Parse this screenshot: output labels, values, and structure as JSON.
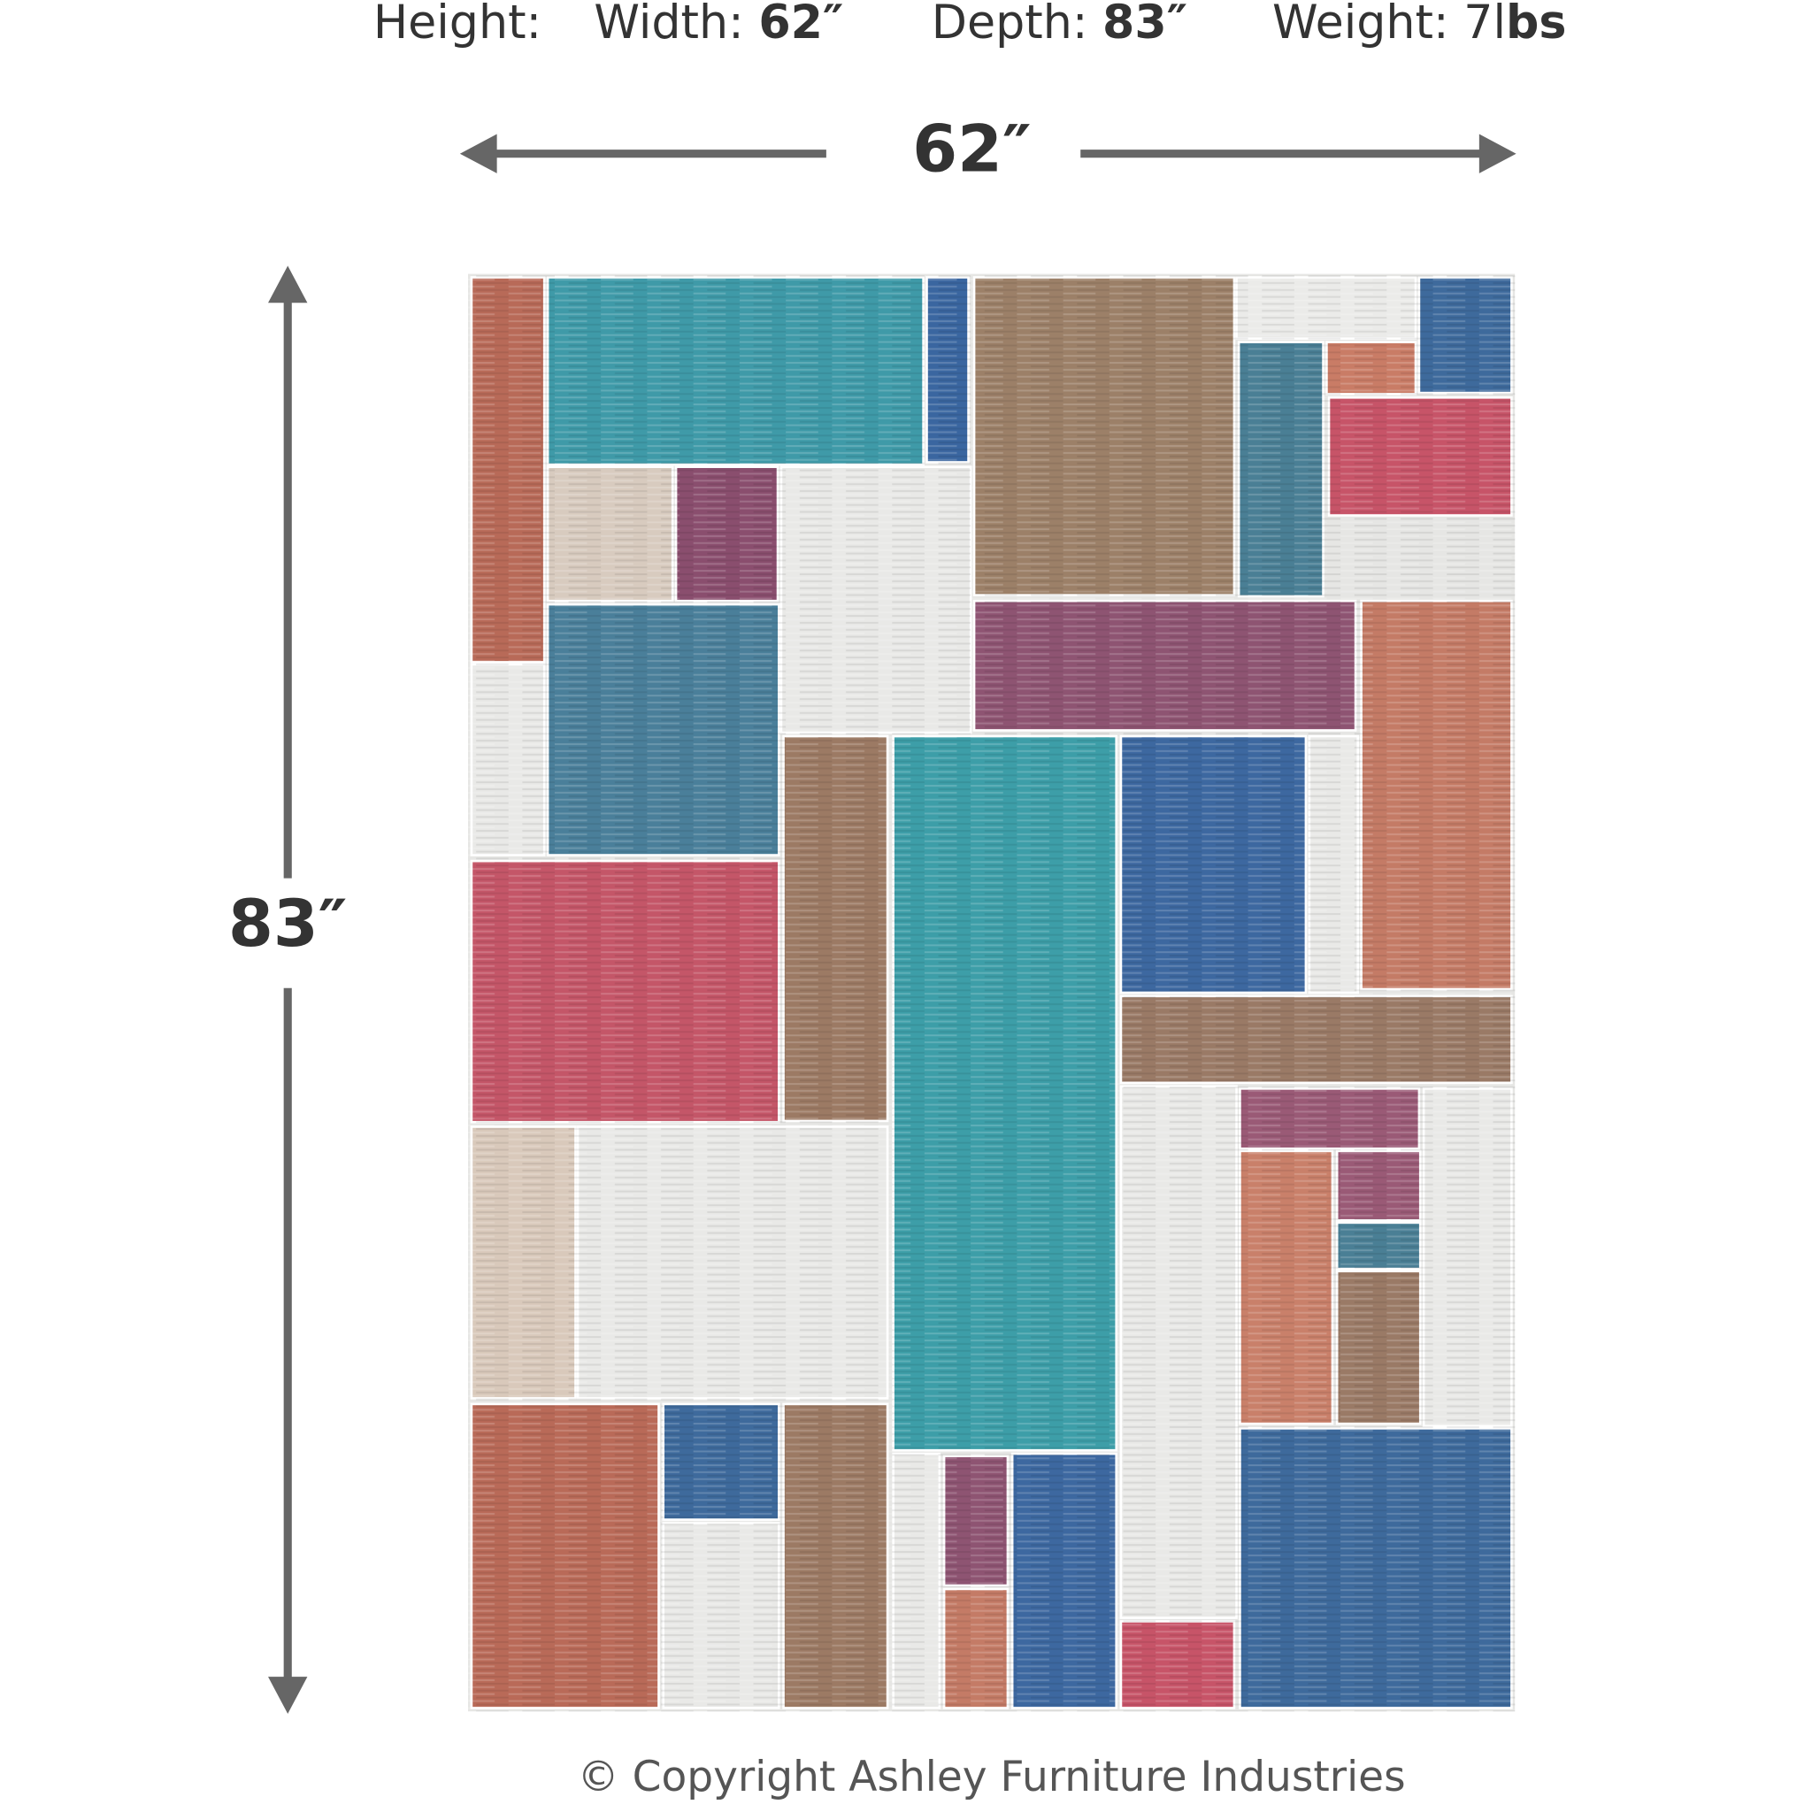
{
  "specs": [
    {
      "label": "Height:"
    },
    {
      "label": "Width:",
      "value": "62″"
    },
    {
      "label": "Depth:",
      "value": "83″"
    },
    {
      "label": "Weight: 7l",
      "value": "bs"
    }
  ],
  "dimensions": {
    "width": "62″",
    "depth": "83″"
  },
  "copyright": "© Copyright Ashley Furniture Industries"
}
